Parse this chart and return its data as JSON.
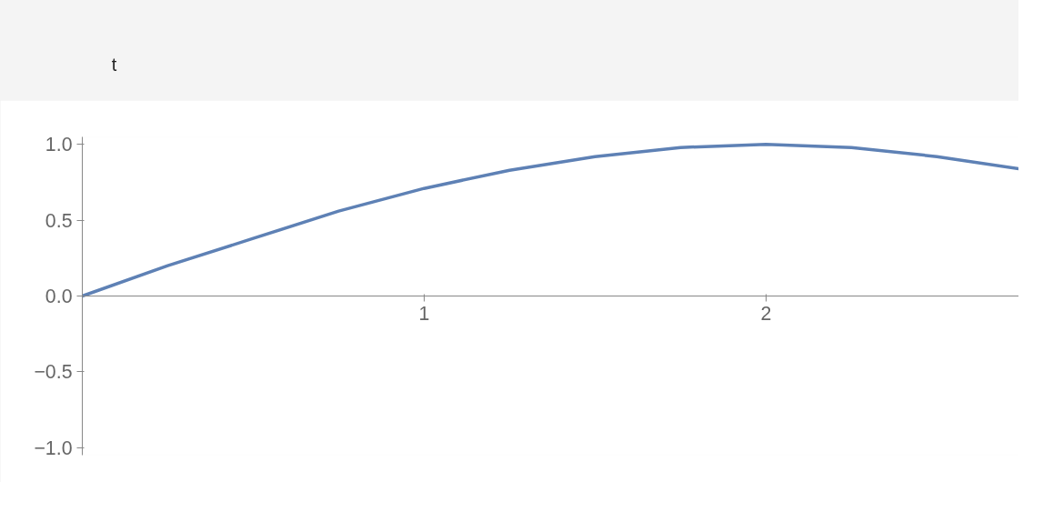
{
  "chart_data": {
    "type": "line",
    "annotations": [
      "t"
    ],
    "x": [
      0,
      0.25,
      0.5,
      0.75,
      1,
      1.25,
      1.5,
      1.75,
      2,
      2.25,
      2.5,
      2.74
    ],
    "series": [
      {
        "color": "#5e81b5",
        "values": [
          0,
          0.2,
          0.38,
          0.56,
          0.71,
          0.83,
          0.92,
          0.98,
          1.0,
          0.98,
          0.92,
          0.84
        ]
      }
    ],
    "xlim": [
      0,
      2.74
    ],
    "ylim": [
      -1.05,
      1.05
    ],
    "xticks": [
      1,
      2
    ],
    "yticks": [
      {
        "value": -1,
        "label": "−1.0"
      },
      {
        "value": -0.5,
        "label": "−0.5"
      },
      {
        "value": 0,
        "label": "0.0"
      },
      {
        "value": 0.5,
        "label": "0.5"
      },
      {
        "value": 1,
        "label": "1.0"
      }
    ],
    "grid": false,
    "marker": "none",
    "line_style": "solid"
  }
}
